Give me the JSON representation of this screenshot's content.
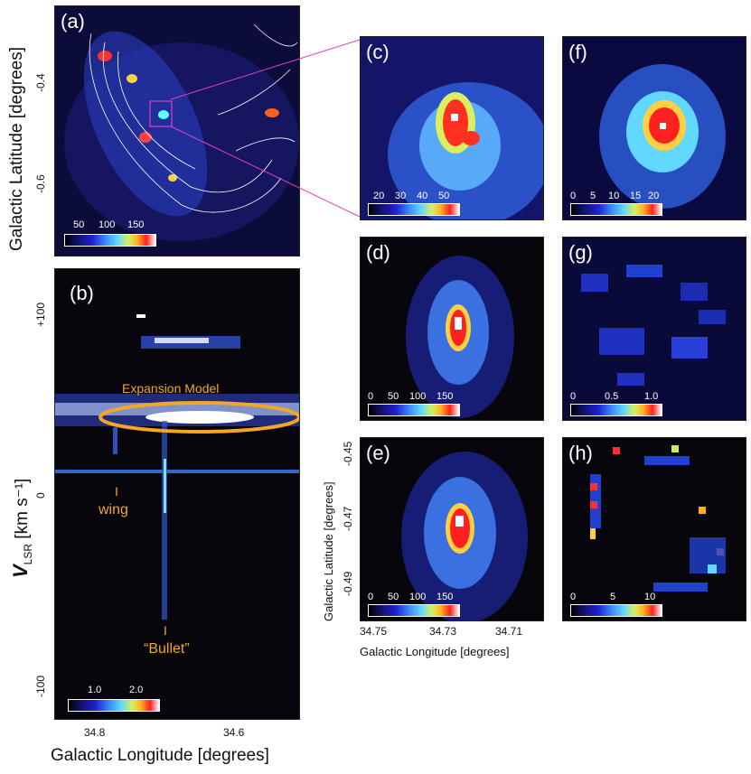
{
  "panels": {
    "a": {
      "label": "(a)",
      "cbar": [
        "50",
        "100",
        "150"
      ]
    },
    "b": {
      "label": "(b)",
      "cbar": [
        "1.0",
        "2.0"
      ],
      "annotations": {
        "model": "Expansion Model",
        "wing_tick": "I",
        "wing": "wing",
        "bullet_tick": "I",
        "bullet": "“Bullet”"
      }
    },
    "c": {
      "label": "(c)",
      "cbar": [
        "20",
        "30",
        "40",
        "50"
      ]
    },
    "d": {
      "label": "(d)",
      "cbar": [
        "0",
        "50",
        "100",
        "150"
      ]
    },
    "e": {
      "label": "(e)",
      "cbar": [
        "0",
        "50",
        "100",
        "150"
      ]
    },
    "f": {
      "label": "(f)",
      "cbar": [
        "0",
        "5",
        "10",
        "15",
        "20"
      ]
    },
    "g": {
      "label": "(g)",
      "cbar": [
        "0",
        "0.5",
        "1.0"
      ]
    },
    "h": {
      "label": "(h)",
      "cbar": [
        "0",
        "5",
        "10"
      ]
    }
  },
  "axes": {
    "a": {
      "ylabel": "Galactic Latitude  [degrees]",
      "yticks": [
        "-0.4",
        "-0.6"
      ]
    },
    "b": {
      "ylabel_main": "V",
      "ylabel_sub": "LSR",
      "ylabel_unit": "  [km s⁻¹]",
      "yticks": [
        "+100",
        "0",
        "-100"
      ],
      "xticks": [
        "34.8",
        "34.6"
      ],
      "xlabel": "Galactic Longitude  [degrees]"
    },
    "e": {
      "ylabel": "Galactic Latitude  [degrees]",
      "yticks": [
        "-0.45",
        "-0.47",
        "-0.49"
      ],
      "xticks": [
        "34.75",
        "34.73",
        "34.71"
      ],
      "xlabel": "Galactic Longitude  [degrees]"
    }
  },
  "colors": {
    "background": "#06060c",
    "accent_orange": "#f5a623",
    "connector": "#e040c0",
    "contour": "#ffffff"
  }
}
